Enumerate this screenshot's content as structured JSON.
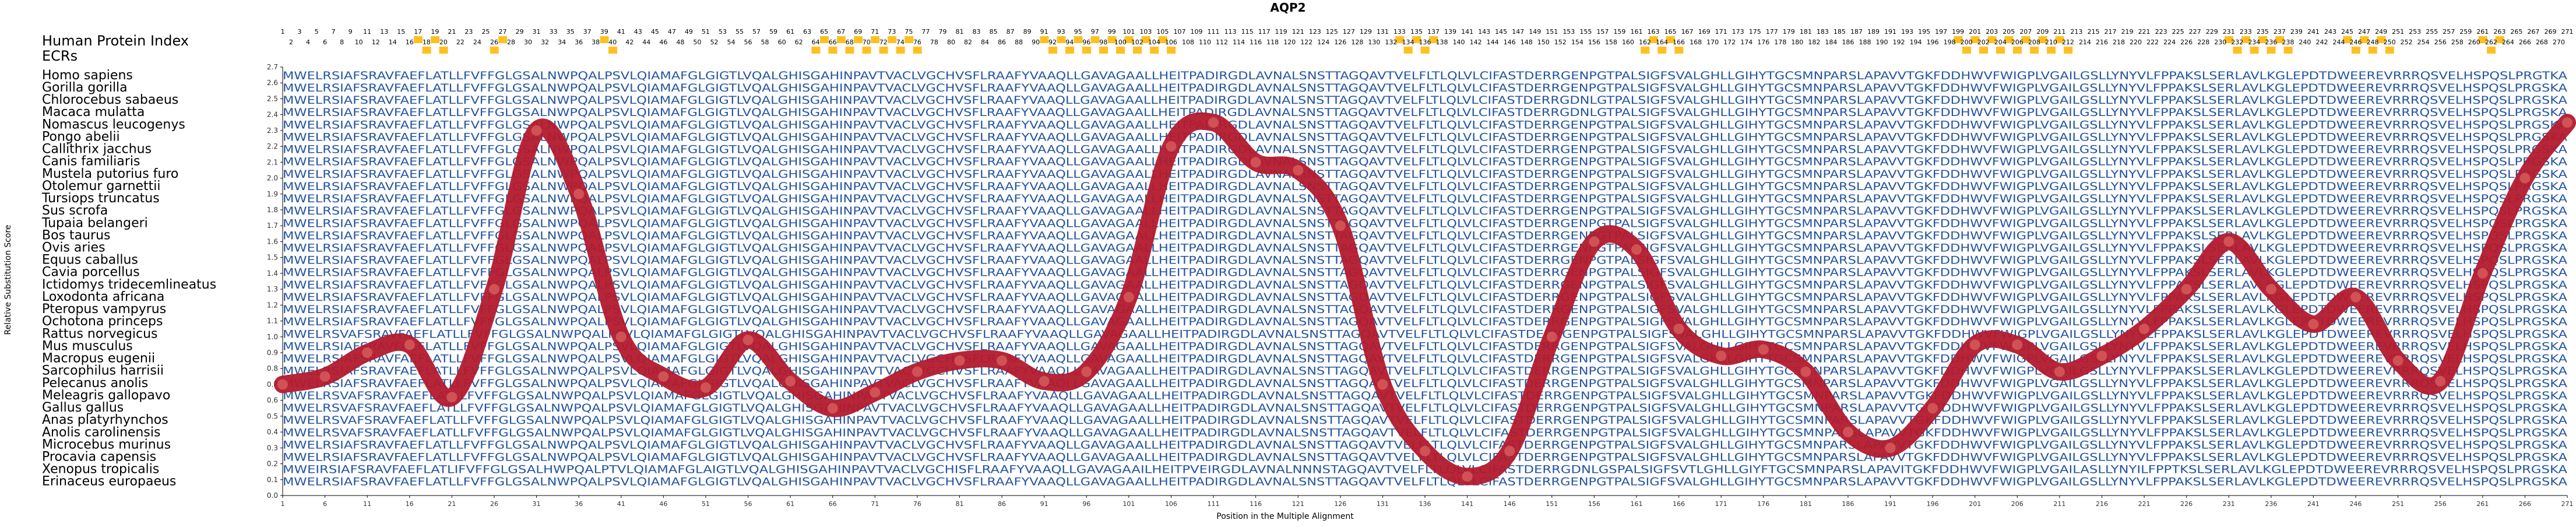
{
  "chart_data": {
    "type": "line",
    "title": "AQP2",
    "xlabel": "Position in the Multiple Alignment",
    "ylabel": "Relative Substitution Score",
    "ylim": [
      0,
      2.7
    ],
    "yticks": [
      0,
      0.1,
      0.2,
      0.3,
      0.4,
      0.5,
      0.6,
      0.7,
      0.8,
      0.9,
      1.0,
      1.1,
      1.2,
      1.3,
      1.4,
      1.5,
      1.6,
      1.7,
      1.8,
      1.9,
      2.0,
      2.1,
      2.2,
      2.3,
      2.4,
      2.5,
      2.6,
      2.7
    ],
    "xlim": [
      1,
      271
    ],
    "xticks": [
      1,
      6,
      11,
      16,
      21,
      26,
      31,
      36,
      41,
      46,
      51,
      56,
      61,
      66,
      71,
      76,
      81,
      86,
      91,
      96,
      101,
      106,
      111,
      116,
      121,
      126,
      131,
      136,
      141,
      146,
      151,
      156,
      161,
      166,
      171,
      176,
      181,
      186,
      191,
      196,
      201,
      206,
      211,
      216,
      221,
      226,
      231,
      236,
      241,
      246,
      251,
      256,
      261,
      266,
      271
    ],
    "row_header_1": "Human Protein Index",
    "row_header_2": "ECRs",
    "human_index_range": [
      1,
      271
    ],
    "ecr_highlights": [
      [
        17,
        20
      ],
      [
        26,
        27
      ],
      [
        39,
        40
      ],
      [
        64,
        76
      ],
      [
        91,
        106
      ],
      [
        133,
        137
      ],
      [
        162,
        166
      ],
      [
        199,
        212
      ],
      [
        231,
        238
      ],
      [
        245,
        250
      ],
      [
        261,
        263
      ]
    ],
    "species": [
      "Homo sapiens",
      "Gorilla gorilla",
      "Chlorocebus sabaeus",
      "Macaca mulatta",
      "Nomascus leucogenys",
      "Pongo abelii",
      "Callithrix jacchus",
      "Canis familiaris",
      "Mustela putorius furo",
      "Otolemur garnettii",
      "Tursiops truncatus",
      "Sus scrofa",
      "Tupaia belangeri",
      "Bos taurus",
      "Ovis aries",
      "Equus caballus",
      "Cavia porcellus",
      "Ictidomys tridecemlineatus",
      "Loxodonta africana",
      "Pteropus vampyrus",
      "Ochotona princeps",
      "Rattus norvegicus",
      "Mus musculus",
      "Macropus eugenii",
      "Sarcophilus harrisii",
      "Pelecanus anolis",
      "Meleagris gallopavo",
      "Gallus gallus",
      "Anas platyrhynchos",
      "Anolis carolinensis",
      "Microcebus murinus",
      "Procavia capensis",
      "Xenopus tropicalis",
      "Erinaceus europaeus"
    ],
    "sequences": [
      "MWELRSIAFSRAVFAEFLATLLFVFFGLGSALNWPQALPSVLQIAMAFGLGIGTLVQALGHISGAHINPAVTVACLVGCHVSFLRAAFYVAAQLLGAVAGAALLHEITPADIRGDLAVNALSNSTTAGQAVTVELFLTLQLVLCIFASTDERRGENPGTPALSIGFSVALGHLLGIHYTGCSMNPARSLAPAVVTGKFDDHWVFWIGPLVGAILGSLLYNYVLFPPAKSLSERLAVLKGLEPDTDWEEREVRRRQSVELHSPQSLPRGTKA",
      "MWELRSIAFSRAVFAEFLATLLFVFFGLGSALNWPQALPSVLQIAMAFGLGIGTLVQALGHISGAHINPAVTVACLVGCHVSFLRAAFYVAAQLLGAVAGAALLHEITPADIRGDLAVNALSNSTTAGQAVTVELFLTLQLVLCIFASTDERRGENPGTPALSIGFSVALGHLLGIHYTGCSMNPARSLAPAVVTGKFDDHWVFWIGPLVGAILGSLLYNYVLFPPAKSLSERLAVLKGLEPDTDWEEREVRRRQSVELHSPQSLPRGSKA",
      "MWELRSIAFSRAVFAEFLATLLFVFFGLGSALNWPQALPSVLQIAMAFGLGIGTLVQALGHISGAHINPAVTVACLVGCHVSFLRAAFYVAAQLLGAVAGAALLHEITPADIRGDLAVNALSNSTTAGQAVTVELFLTLQLVLCIFASTDERRGDNLGTPALSIGFSVALGHLLGIHYTGCSMNPARSLAPAVVTGKFDDHWVFWIGPLVGAILGSLLYNYVLFPPAKSLSERLAVLKGLEPDTDWEEREVRRRQSVELHSPQSLPRGSKA",
      "MWELRSIAFSRAVFAEFLATLLFVFFGLGSALNWPQALPSVLQIAMAFGLGIGTLVQALGHISGAHINPAVTVACLVGCHVSFLRAAFYVAAQLLGAVAGAALLHEITPADIRGDLAVNALSNSTTAGQAVTVELFLTLQLVLCIFASTDERRGDNLGTPALSIGFSVALGHLLGIHYTGCSMNPARSLAPAVVTGKFDDHWVFWIGPLVGAILGSLLYNYVLFPPAKSLSERLAVLKGLEPDTDWEEREVRRRQSVELHSPQSLPRGSKA",
      "MWELRSIAFSRAVFAEFLATLLFVFFGLGSALNWPQALPSVLQIAMAFGLGIGTLVQALGHISGAHINPAVTVACLVGCHVSFLRAAFYVAAQLLGAVAGAALLHEITPADIRGDLAVNALSNSTTAGQAVTVELFLTLQLVLCIFASTDERRGENPGTPALSIGFSVALGHLLGIHYTGCSMNPARSLAPAVVTGKFDDHWVFWIGPLVGAILGSLLYNYVLFPPAKSLSERLAVLKGLEPDTDWEEREVRRRQSVELHSPQSLPRGSKA",
      "MWELRSIAFSRAVFAEFLATLLFVFFGLGSALNWPQALPSVLQIAMAFGLGIGTLVQALGHISGAHINPAVTVACLVGCHVSFLRAAFYVAAQLLGAVAGAALLHEITPADIRGDLAVNALSNSTTAGQAVTVELFLTLQLVLCIFASTDERRGENPGTPALSIGFSVALGHLLGIHYTGCSMNPARSLAPAVVTGKFDDHWVFWIGPLVGAILGSLLYNYVLFPPAKSLSERLAVLKGLEPDTDWEEREVRRRQSVELHSPQSLPRGSKA",
      "MWELRSIAFSRAVFAEFLATLLFVFFGLGSALNWPQALPSVLQIAMAFGLGIGTLVQALGHISGAHINPAVTVACLVGCHVSFLRAAFYVAAQLLGAVAGAALLHEITPADIRGDLAVNALSNSTTAGQAVTVELFLTLQLVLCIFASTDERRGENPGTPALSIGFSVALGHLLGIHYTGCSMNPARSLAPAVVTGKFDDHWVFWIGPLVGAILGSLLYNYVLFPPAKSLSERLAVLKGLEPDTDWEEREVRRRQSVELHSPQSLPRGSKA",
      "MWELRSIAFSRAVFAEFLATLLFVFFGLGSALNWPQALPSVLQIAMAFGLGIGTLVQALGHISGAHINPAVTVACLVGCHVSFLRAAFYVAAQLLGAVAGAALLHEITPADIRGDLAVNALSNSTTAGQAVTVELFLTLQLVLCIFASTDERRGENPGTPALSIGFSVALGHLLGIHYTGCSMNPARSLAPAVVTGKFDDHWVFWIGPLVGAILGSLLYNYVLFPPAKSLSERLAVLKGLEPDTDWEEREVRRRQSVELHSPQSLPRGSKA",
      "MWELRSIAFSRAVFAEFLATLLFVFFGLGSALNWPQALPSVLQIAMAFGLGIGTLVQALGHISGAHINPAVTVACLVGCHVSFLRAAFYVAAQLLGAVAGAALLHEITPADIRGDLAVNALSNSTTAGQAVTVELFLTLQLVLCIFASTDERRGENPGTPALSIGFSVALGHLLGIHYTGCSMNPARSLAPAVVTGKFDDHWVFWIGPLVGAILGSLLYNYVLFPPAKSLSERLAVLKGLEPDTDWEEREVRRRQSVELHSPQSLPRGSKA",
      "MWELRSIAFSRAVFAEFLATLLFVFFGLGSALNWPQALPSVLQIAMAFGLGIGTLVQALGHISGAHINPAVTVACLVGCHVSFLRAAFYVAAQLLGAVAGAALLHEITPADIRGDLAVNALSNSTTAGQAVTVELFLTLQLVLCIFASTDERRGENPGTPALSIGFSVALGHLLGIHYTGCSMNPARSLAPAVVTGKFDDHWVFWIGPLVGAILGSLLYNYVLFPPAKSLSERLAVLKGLEPDTDWEEREVRRRQSVELHSPQSLPRGSKA",
      "MWELRSIAFSRAVFAEFLATLLFVFFGLGSALNWPQALPSVLQIAMAFGLGIGTLVQALGHISGAHINPAVTVACLVGCHVSFLRAAFYVAAQLLGAVAGAALLHEITPADIRGDLAVNALSNSTTAGQAVTVELFLTLQLVLCIFASTDERRGENPGTPALSIGFSVALGHLLGIHYTGCSMNPARSLAPAVVTGKFDDHWVFWIGPLVGAILGSLLYNYVLFPPAKSLSERLAVLKGLEPDTDWEEREVRRRQSVELHSPQSLPRGSKA",
      "MWELRSIAFSRAVFAEFLATLLFVFFGLGSALNWPQALPSVLQIAMAFGLGIGTLVQALGHISGAHINPAVTVACLVGCHVSFLRAAFYVAAQLLGAVAGAALLHEITPADIRGDLAVNALSNSTTAGQAVTVELFLTLQLVLCIFASTDERRGENPGTPALSIGFSVALGHLLGIHYTGCSMNPARSLAPAVVTGKFDDHWVFWIGPLVGAILGSLLYNYVLFPPAKSLSERLAVLKGLEPDTDWEEREVRRRQSVELHSPQSLPRGSKA",
      "MWELRSIAFSRAVFAEFLATLLFVFFGLGSALNWPQALPSVLQIAMAFGLGIGTLVQALGHISGAHINPAVTVACLVGCHVSFLRAAFYVAAQLLGAVAGAALLHEITPADIRGDLAVNALSNSTTAGQAVTVELFLTLQLVLCIFASTDERRGENPGTPALSIGFSVALGHLLGIHYTGCSMNPARSLAPAVVTGKFDDHWVFWIGPLVGAILGSLLYNYVLFPPAKSLSERLAVLKGLEPDTDWEEREVRRRQSVELHSPQSLPRGSKA",
      "MWELRSIAFSRAVFAEFLATLLFVFFGLGSALNWPQALPSVLQIAMAFGLGIGTLVQALGHISGAHINPAVTVACLVGCHVSFLRAAFYVAAQLLGAVAGAALLHEITPADIRGDLAVNALSNSTTAGQAVTVELFLTLQLVLCIFASTDERRGENPGTPALSIGFSVALGHLLGIHYTGCSMNPARSLAPAVVTGKFDDHWVFWIGPLVGAILGSLLYNYVLFPPAKSLSERLAVLKGLEPDTDWEEREVRRRQSVELHSPQSLPRGSKA",
      "MWELRSIAFSRAVFAEFLATLLFVFFGLGSALNWPQALPSVLQIAMAFGLGIGTLVQALGHISGAHINPAVTVACLVGCHVSFLRAAFYVAAQLLGAVAGAALLHEITPADIRGDLAVNALSNSTTAGQAVTVELFLTLQLVLCIFASTDERRGENPGTPALSIGFSVALGHLLGIHYTGCSMNPARSLAPAVVTGKFDDHWVFWIGPLVGAILGSLLYNYVLFPPAKSLSERLAVLKGLEPDTDWEEREVRRRQSVELHSPQSLPRGSKA",
      "MWELRSIAFSRAVFAEFLATLLFVFFGLGSALNWPQALPSVLQIAMAFGLGIGTLVQALGHISGAHINPAVTVACLVGCHVSFLRAAFYVAAQLLGAVAGAALLHEITPADIRGDLAVNALSNSTTAGQAVTVELFLTLQLVLCIFASTDERRGENPGTPALSIGFSVALGHLLGIHYTGCSMNPARSLAPAVVTGKFDDHWVFWIGPLVGAILGSLLYNYVLFPPAKSLSERLAVLKGLEPDTDWEEREVRRRQSVELHSPQSLPRGSKA",
      "MWELRSIAFSRAVFAEFLATLLFVFFGLGSALNWPQALPSVLQIAMAFGLGIGTLVQALGHISGAHINPAVTVACLVGCHVSFLRAAFYVAAQLLGAVAGAALLHEITPADIRGDLAVNALSNSTTAGQAVTVELFLTLQLVLCIFASTDERRGENPGTPALSIGFSVALGHLLGIHYTGCSMNPARSLAPAVVTGKFDDHWVFWIGPLVGAILGSLLYNYVLFPPAKSLSERLAVLKGLEPDTDWEEREVRRRQSVELHSPQSLPRGSKA",
      "MWELRSIAFSRAVFAEFLATLLFVFFGLGSALNWPQALPSVLQIAMAFGLGIGTLVQALGHISGAHINPAVTVACLVGCHVSFLRAAFYVAAQLLGAVAGAALLHEITPADIRGDLAVNALSNSTTAGQAVTVELFLTLQLVLCIFASTDERRGENPGTPALSIGFSVALGHLLGIHYTGCSMNPARSLAPAVVTGKFDDHWVFWIGPLVGAILGSLLYNYVLFPPAKSLSERLAVLKGLEPDTDWEEREVRRRQSVELHSPQSLPRGSKA",
      "MWELRSIAFSRAVFAEFLATLLFVFFGLGSALNWPQALPSVLQIAMAFGLGIGTLVQALGHISGAHINPAVTVACLVGCHVSFLRAAFYVAAQLLGAVAGAALLHEITPADIRGDLAVNALSNSTTAGQAVTVELFLTLQLVLCIFASTDERRGENPGTPALSIGFSVALGHLLGIHYTGCSMNPARSLAPAVVTGKFDDHWVFWIGPLVGAILGSLLYNYVLFPPAKSLSERLAVLKGLEPDTDWEEREVRRRQSVELHSPQSLPRGSKA",
      "MWELRSIAFSRAVFAEFLATLLFVFFGLGSALNWPQALPSVLQIAMAFGLGIGTLVQALGHISGAHINPAVTVACLVGCHVSFLRAAFYVAAQLLGAVAGAALLHEITPADIRGDLAVNALSNSTTAGQAVTVELFLTLQLVLCIFASTDERRGENPGTPALSIGFSVALGHLLGIHYTGCSMNPARSLAPAVVTGKFDDHWVFWIGPLVGAILGSLLYNYVLFPPAKSLSERLAVLKGLEPDTDWEEREVRRRQSVELHSPQSLPRGSKA",
      "MWELRSIAFSRAVFAEFLATLLFVFFGLGSALNWPQALPSVLQIAMAFGLGIGTLVQALGHISGAHINPAVTVACLVGCHVSFLRAAFYVAAQLLGAVAGAALLHEITPADIRGDLAVNALSNSTTAGQAVTVELFLTLQLVLCIFASTDERRGENPGTPALSIGFSVALGHLLGIHYTGCSMNPARSLAPAVVTGKFDDHWVFWIGPLVGAILGSLLYNYVLFPPAKSLSERLAVLKGLEPDTDWEEREVRRRQSVELHSPQSLPRGSKA",
      "MWELRSVAFSRAVFAEFLATLLFVFFGLGSALNWPQALPSVLQIAMAFGLGIGTLVQALGHISGAHINPAVTVACLVGCHVSFLRAAFYVAAQLLGAVAGAALLHEITPADIRGDLAVNALSNSTTAGQAVTVELFLTLQLVLCIFASTDERRGENPGTPALSIGFSVALGHLLGIHYTGCSMNPARSLAPAVVTGKFDDHWVFWIGPLVGAILGSLLYNYVLFPPAKSLSERLAVLKGLEPDTDWEEREVRRRQSVELHSPQSLPRGSKA",
      "MWELRSIAFSRAVFAEFLATLLFVFFGLGSALNWPQALPSVLQIAMAFGLGIGTLVQALGHISGAHINPAVTVACLVGCHVSFLRAAFYVAAQLLGAVAGAALLHEITPADIRGDLAVNALSNSTTAGQAVTVELFLTLQLVLCIFASTDERRGENPGTPALSIGFSVALGHLLGIHYTGCSMNPARSLAPAVVTGKFDDHWVFWIGPLVGAILGSLLYNYVLFPPAKSLSERLAVLKGLEPDTDWEEREVRRRQSVELHSPQSLPRGSKA",
      "MWELRSIAFSRAVFAEFLATLLFVFFGLGSALNWPQALPSVLQIAMAFGLGIGTLVQALGHISGAHINPAVTVACLVGCHVSFLRAAFYVAAQLLGAVAGAALLHEITPADIRGDLAVNALSNSTTAGQAVTVELFLTLQLVLCIFASTDERRGENPGTPALSIGFSVALGHLLGIHYTGCSMNPARSLAPAVVTGKFDDHWVFWIGPLVGAILGSLLYNYVLFPPAKSLSERLAVLKGLEPDTDWEEREVRRRQSVELHSPQSLPRGSKA",
      "MWELRSIAFSRAVFAEFLATLLFVFFGLGSALNWPQALPSVLQIAMAFGLGIGTLVQALGHISGAHINPAVTVACLVGCHVSFLRAAFYVAAQLLGAVAGAALLHEITPADIRGDLAVNALSNSTTAGQAVTVELFLTLQLVLCIFASTDERRGENPGTPALSIGFSVALGHLLGIHYTGCSMNPARSLAPAVVTGKFDDHWVFWIGPLVGAILGSLLYNYVLFPPAKSLSERLAVLKGLEPDTDWEEREVRRRQSVELHSPQSLPRGSKA",
      "MWELRSIAFSRAVFAEFLATLLFVFFGLGSALNWPQALPSVLQIAMAFGLGIGTLVQALGHISGAHINPAVTVACLVGCHVSFLRAAFYVAAQLLGAVAGAALLHEITPADIRGDLAVNALSNSTTAGQAVTVELFLTLQLVLCIFASTDERRGENPGTPALSIGFSVALGHLLGIHYTGCSMNPARSLAPAVVTGKFDDHWVFWIGPLVGAILGSLLYNYVLFPPAKSLSERLAVLKGLEPDTDWEEREVRRRQSVELHSPQSLPRGSKA",
      "MWELRSVAFSRAVFAEFLATLLFVFFGLGSALNWPQALPSVLQIAMAFGLGIGTLVQALGHISGAHINPAVTVACLVGCHVSFLRAAFYVAAQLLGAVAGAALLHEITPADIRGDLAVNALSNSTTAGQAVTVELFLTLQLVLCIFASTDERRGENPGTPALSIGFSVALGHLLGIHYTGCSMNPARSLAPAVVTGKFDDHWVFWIGPLVGAILGSLLYNYVLFPPAKSLSERLAVLKGLEPDTDWEEREVRRRQSVELHSPQSLPRGSKA",
      "MWELRSVAFSRAVFAEFLATLLFVFFGLGSALNWPQALPSVLQIAMAFGLGIGTLVQALGHISGAHINPAVTVACLVGCHVSFLRAAFYVAAQLLGAVAGAALLHEITPADIRGDLAVNALSNSTTAGQAVTVELFLTLQLVLCIFASTDERRGENPGTPALSIGFSVALGHLLGIHYTGCSMNPARSLAPAVVTGKFDDHWVFWIGPLVGAILGSLLYNYVLFPPAKSLSERLAVLKGLEPDTDWEEREVRRRQSVELHSPQSLPRGSKA",
      "MWELRSVAFSRAVFAEFLATLLFVFFGLGSALNWPQALPSVLQIAMAFGLGIGTLVQALGHISGAHINPAVTVACLVGCHVSFLRAAFYVAAQLLGAVAGAALLHEITPADIRGDLAVNALSNSTTAGQAVTVELFLTLQLVLCIFASTDERRGENPGTPALSIGFSVALGHLLGIHYTGCSMNPARSLAPAVVTGKFDDHWVFWIGPLVGAILGSLLYNYVLFPPAKSLSERLAVLKGLEPDTDWEEREVRRRQSVELHSPQSLPRGSKA",
      "MWELRSVAFSRAVFAEFLATLLFVFFGLGSALNWPQALPSVLQIAMAFGLGIGTLVQALGHISGAHINPAVTVACLVGCHVSFLRAAFYVAAQLLGAVAGAALLHEITPADIRGDLAVNALSNSTTAGQAVTVELFLTLQLVLCIFASTDERRGENPGTPALSIGFSVALGHLLGIHYTGCSMNPARSLAPAVVTGKFDDHWVFWIGPLVGAILGSLLYNYVLFPPAKSLSERLAVLKGLEPDTDWEEREVRRRQSVELHSPQSLPRGSKA",
      "MWELRSIAFSRAVFAEFLATLLFVFFGLGSALNWPQALPSVLQIAMAFGLGIGTLVQALGHISGAHINPAVTVACLVGCHVSFLRAAFYVAAQLLGAVAGAALLHEITPADIRGDLAVNALSNSTTAGQAVTVELFLTLQLVLCIFASTDERRGENPGTPALSIGFSVALGHLLGIHYTGCSMNPARSLAPAVVTGKFDDHWVFWIGPLVGAILGSLLYNYVLFPPAKSLSERLAVLKGLEPDTDWEEREVRRRQSVELHSPQSLPRGSKA",
      "MWELRSIAFSRAVFAEFLATLLFVFFGLGSALNWPQALPSVLQIAMAFGLGIGTLVQALGHISGAHINPAVTVACLVGCHVSFLRAAFYVAAQLLGAVAGAALLHEITPADIRGDLAVNALSNSTTAGQAVTVELFLTLQLVLCIFASTDERRGENPGTPALSIGFSVALGHLLGIHYTGCSMNPARSLAPAVVTGKFDDHWVFWIGPLVGAILGSLLYNYVLFPPAKSLSERLAVLKGLEPDTDWEEREVRRRQSVELHSPQSLPRGSKA",
      "MWEIRSIAFSRAVFAEFLATLIFVFFGLGSALHWPQALPTVLQIAMAFGLAIGTLVQALGHISGAHINPAVTVACLVGCHISFLRAAFYVAAQLLGAVAGAAILHEITPVEIRGDLAVNALNNNSTAGQAVTVELFLTLQLVLCIFASTDERRGDNLGSPALSIGFSVTLGHLLGIYFTGCSMNPARSLAPAVITGKFDDHWVFWIGPLVGAILASLLYNYILFPPTKSLSERLAVLKGLEPDTDWEEREVRRRQSVELHSPQSLPRGSKA",
      "MWELRSIAFSRAVFAEFLATLLFVFFGLGSALNWPQALPSVLQIAMAFGLGIGTLVQALGHISGAHINPAVTVACLVGCHVSFLRAAFYVAAQLLGAVAGAALLHEITPADIRGDLAVNALSNSTTAGQAVTVELFLTLQLVLCIFASTDERRGENPGTPALSIGFSVALGHLLGIHYTGCSMNPARSLAPAVVTGKFDDHWVFWIGPLVGAILGSLLYNYVLFPPAKSLSERLAVLKGLEPDTDWEEREVRRRQSVELHSPQSLPRGSKA"
    ],
    "series": [
      {
        "x": [
          1,
          6,
          11,
          16,
          21,
          26,
          31,
          36,
          41,
          46,
          51,
          56,
          61,
          66,
          71,
          76,
          81,
          86,
          91,
          96,
          101,
          106,
          111,
          116,
          121,
          126,
          131,
          136,
          141,
          146,
          151,
          156,
          161,
          166,
          171,
          176,
          181,
          186,
          191,
          196,
          201,
          206,
          211,
          216,
          221,
          226,
          231,
          236,
          241,
          246,
          251,
          256,
          261,
          266,
          271
        ],
        "values": [
          0.7,
          0.75,
          0.9,
          0.95,
          0.62,
          1.3,
          2.3,
          1.9,
          1.0,
          0.75,
          0.68,
          0.98,
          0.72,
          0.55,
          0.65,
          0.78,
          0.85,
          0.85,
          0.72,
          0.78,
          1.25,
          2.2,
          2.35,
          2.1,
          2.05,
          1.7,
          0.7,
          0.28,
          0.12,
          0.28,
          1.0,
          1.6,
          1.55,
          1.05,
          0.88,
          0.92,
          0.78,
          0.4,
          0.3,
          0.55,
          0.95,
          0.95,
          0.78,
          0.88,
          1.05,
          1.3,
          1.6,
          1.3,
          1.08,
          1.25,
          0.85,
          0.72,
          1.4,
          2.0,
          2.35
        ],
        "color": "#b21a2d"
      }
    ],
    "colors": {
      "line": "#b21a2d",
      "markers": "#d65a5a",
      "sequence_primary": "#2454a0",
      "sequence_conserved": "#8fb0d8",
      "ecr_fill": "#ffc020",
      "axis": "#000000"
    },
    "legend": "none",
    "grid": false
  }
}
